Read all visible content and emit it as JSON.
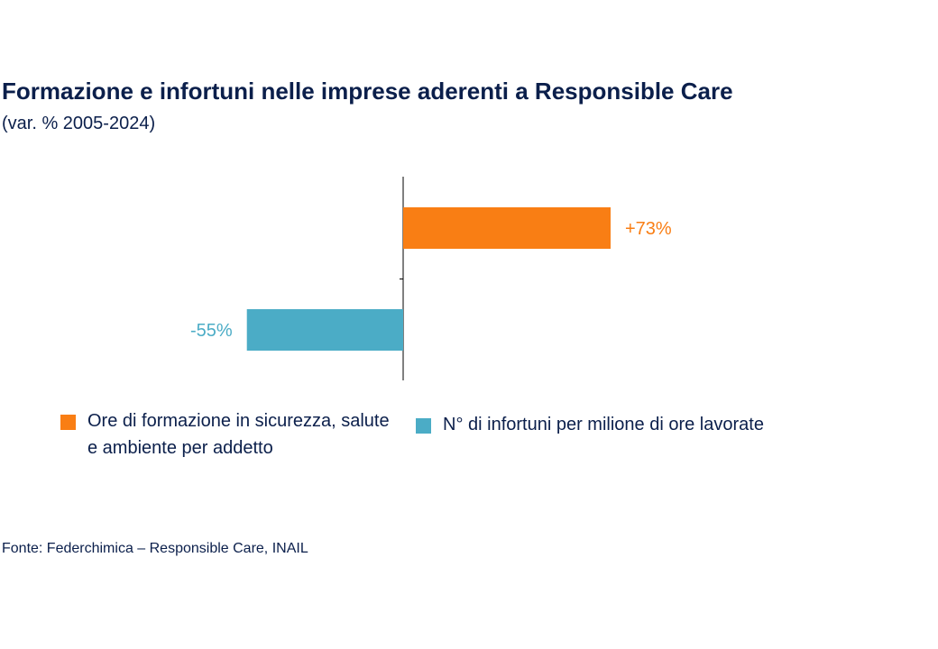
{
  "title": "Formazione e infortuni nelle imprese aderenti a Responsible Care",
  "subtitle": "(var. % 2005-2024)",
  "source": "Fonte: Federchimica – Responsible Care, INAIL",
  "colors": {
    "text": "#0b1f4b",
    "orange": "#f97e14",
    "teal": "#4bacc6"
  },
  "chart_data": {
    "type": "bar",
    "orientation": "horizontal",
    "title": "Formazione e infortuni nelle imprese aderenti a Responsible Care",
    "subtitle": "(var. % 2005-2024)",
    "unit": "%",
    "xlim": [
      -100,
      100
    ],
    "grid": false,
    "legend_position": "bottom",
    "series": [
      {
        "name": "Ore di formazione in sicurezza, salute e ambiente per addetto",
        "value": 73,
        "label": "+73%",
        "color": "#f97e14"
      },
      {
        "name": "N° di infortuni per milione di ore lavorate",
        "value": -55,
        "label": "-55%",
        "color": "#4bacc6"
      }
    ]
  }
}
